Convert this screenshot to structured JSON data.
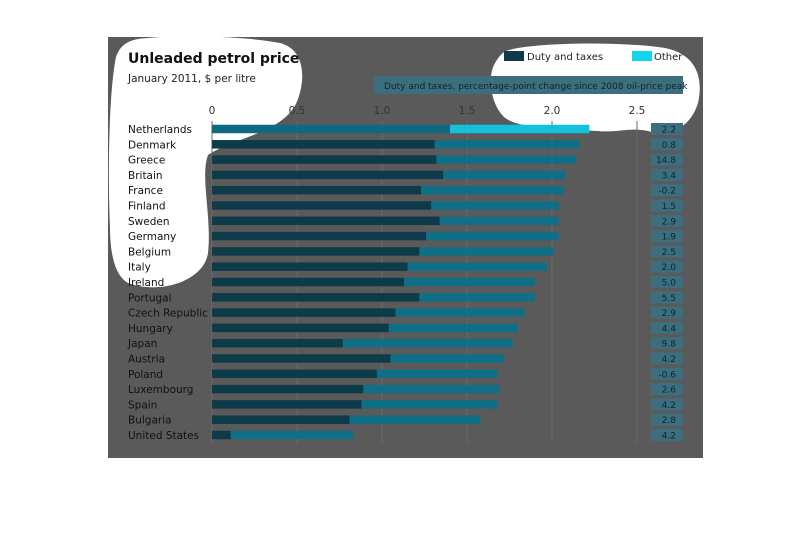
{
  "chart_data": {
    "type": "bar",
    "stacked": true,
    "orientation": "horizontal",
    "title": "Unleaded petrol price",
    "subtitle": "January 2011, $ per litre",
    "categories": [
      "Netherlands",
      "Denmark",
      "Greece",
      "Britain",
      "France",
      "Finland",
      "Sweden",
      "Germany",
      "Belgium",
      "Italy",
      "Ireland",
      "Portugal",
      "Czech Republic",
      "Hungary",
      "Japan",
      "Austria",
      "Poland",
      "Luxembourg",
      "Spain",
      "Bulgaria",
      "United States"
    ],
    "series": [
      {
        "name": "Duty and taxes",
        "color": "#0e3b4a",
        "values": [
          1.4,
          1.31,
          1.32,
          1.36,
          1.23,
          1.29,
          1.34,
          1.26,
          1.22,
          1.15,
          1.13,
          1.22,
          1.08,
          1.04,
          0.77,
          1.05,
          0.97,
          0.89,
          0.88,
          0.81,
          0.11
        ]
      },
      {
        "name": "Other",
        "color": "#0f6f86",
        "values": [
          0.82,
          0.85,
          0.82,
          0.72,
          0.84,
          0.75,
          0.7,
          0.78,
          0.79,
          0.82,
          0.77,
          0.68,
          0.76,
          0.76,
          1.0,
          0.67,
          0.71,
          0.8,
          0.8,
          0.77,
          0.72
        ]
      }
    ],
    "highlight_category": "Netherlands",
    "highlight_colors": {
      "Duty and taxes": "#0d6a80",
      "Other": "#12c2dc"
    },
    "legend_colors": {
      "Duty and taxes": "#0e3b4a",
      "Other": "#12d6ec"
    },
    "change_header": "Duty and taxes, percentage-point change since 2008 oil-price peak",
    "change_values": [
      "2.2",
      "0.8",
      "14.8",
      "3.4",
      "-0.2",
      "1.5",
      "2.9",
      "1.9",
      "2.5",
      "2.0",
      "5.0",
      "5.5",
      "2.9",
      "4.4",
      "9.8",
      "4.2",
      "-0.6",
      "2.6",
      "4.2",
      "2.8",
      "4.2"
    ],
    "xlim": [
      0,
      2.5
    ],
    "xticks": [
      "0",
      "0.5",
      "1.0",
      "1.5",
      "2.0",
      "2.5"
    ],
    "legend_position": "top-right",
    "grid": true
  }
}
